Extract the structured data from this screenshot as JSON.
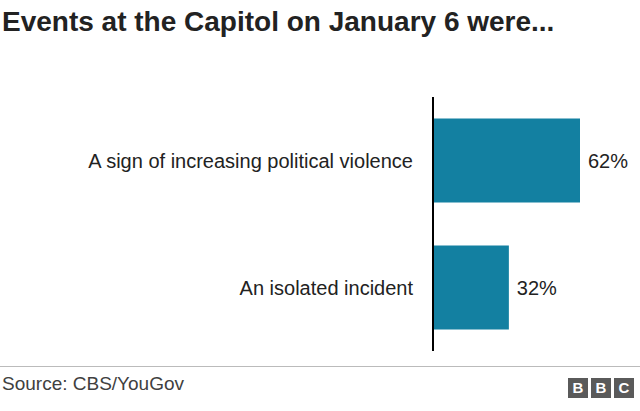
{
  "chart_data": {
    "type": "bar",
    "orientation": "horizontal",
    "title": "Events at the Capitol on January 6 were...",
    "categories": [
      "A sign of increasing political violence",
      "An isolated incident"
    ],
    "values": [
      62,
      32
    ],
    "value_labels": [
      "62%",
      "32%"
    ],
    "data_labels": true,
    "color": "#1380a1",
    "xlim": [
      0,
      62
    ],
    "tick_labels": "y",
    "grid": false,
    "source": "Source: CBS/YouGov",
    "logo": "BBC"
  }
}
